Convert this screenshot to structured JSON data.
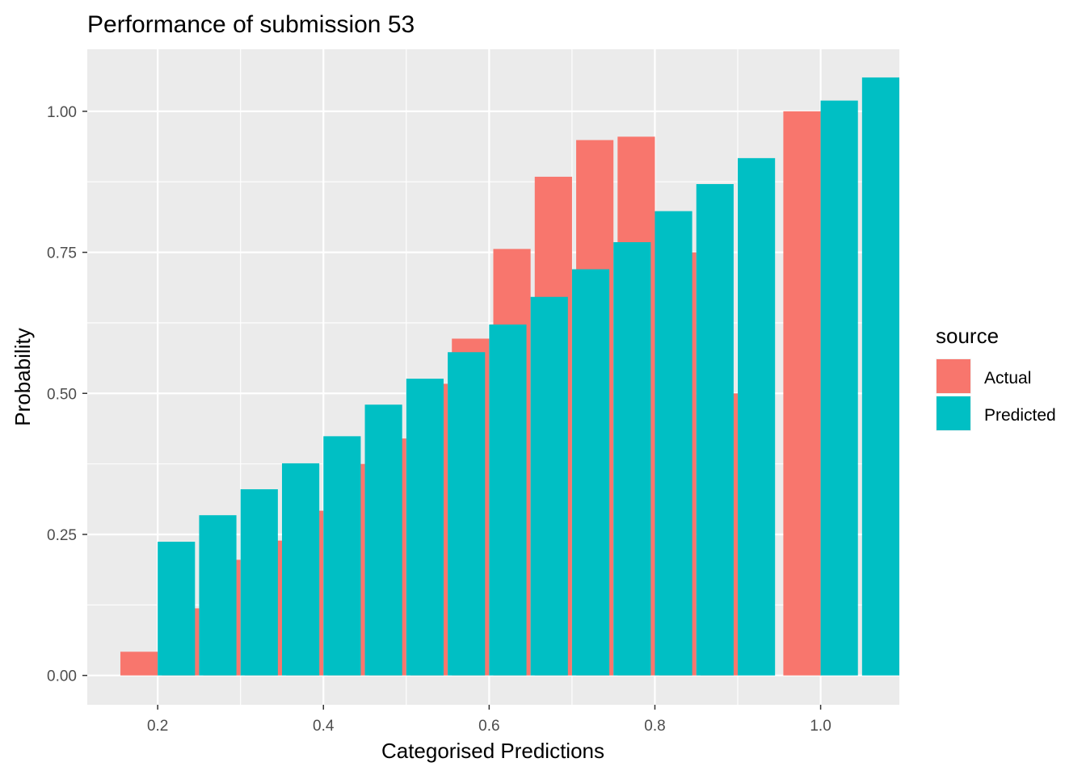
{
  "chart_data": {
    "type": "bar",
    "title": "Performance of submission 53",
    "xlabel": "Categorised Predictions",
    "ylabel": "Probability",
    "xlim": [
      0.115,
      1.095
    ],
    "ylim": [
      -0.052,
      1.11
    ],
    "x_ticks": [
      0.2,
      0.4,
      0.6,
      0.8,
      1.0
    ],
    "x_tick_labels": [
      "0.2",
      "0.4",
      "0.6",
      "0.8",
      "1.0"
    ],
    "y_ticks": [
      0.0,
      0.25,
      0.5,
      0.75,
      1.0
    ],
    "y_tick_labels": [
      "0.00",
      "0.25",
      "0.50",
      "0.75",
      "1.00"
    ],
    "bar_width": 0.045,
    "grid": true,
    "legend": {
      "title": "source",
      "position": "right",
      "entries": [
        "Actual",
        "Predicted"
      ]
    },
    "series": [
      {
        "name": "Actual",
        "color": "#F8766D",
        "points": [
          {
            "x": 0.2,
            "y": 0.042
          },
          {
            "x": 0.25,
            "y": 0.119
          },
          {
            "x": 0.3,
            "y": 0.205
          },
          {
            "x": 0.35,
            "y": 0.239
          },
          {
            "x": 0.4,
            "y": 0.292
          },
          {
            "x": 0.45,
            "y": 0.375
          },
          {
            "x": 0.5,
            "y": 0.42
          },
          {
            "x": 0.55,
            "y": 0.517
          },
          {
            "x": 0.6,
            "y": 0.597
          },
          {
            "x": 0.65,
            "y": 0.756
          },
          {
            "x": 0.7,
            "y": 0.884
          },
          {
            "x": 0.75,
            "y": 0.949
          },
          {
            "x": 0.8,
            "y": 0.955
          },
          {
            "x": 0.85,
            "y": 0.75
          },
          {
            "x": 0.9,
            "y": 0.5
          },
          {
            "x": 1.0,
            "y": 1.0
          }
        ]
      },
      {
        "name": "Predicted",
        "color": "#00BFC4",
        "points": [
          {
            "x": 0.2,
            "y": 0.237
          },
          {
            "x": 0.25,
            "y": 0.284
          },
          {
            "x": 0.3,
            "y": 0.33
          },
          {
            "x": 0.35,
            "y": 0.376
          },
          {
            "x": 0.4,
            "y": 0.424
          },
          {
            "x": 0.45,
            "y": 0.48
          },
          {
            "x": 0.5,
            "y": 0.526
          },
          {
            "x": 0.55,
            "y": 0.573
          },
          {
            "x": 0.6,
            "y": 0.622
          },
          {
            "x": 0.65,
            "y": 0.671
          },
          {
            "x": 0.7,
            "y": 0.72
          },
          {
            "x": 0.75,
            "y": 0.768
          },
          {
            "x": 0.8,
            "y": 0.823
          },
          {
            "x": 0.85,
            "y": 0.871
          },
          {
            "x": 0.9,
            "y": 0.917
          },
          {
            "x": 1.0,
            "y": 1.019
          },
          {
            "x": 1.05,
            "y": 1.06
          }
        ]
      }
    ]
  }
}
